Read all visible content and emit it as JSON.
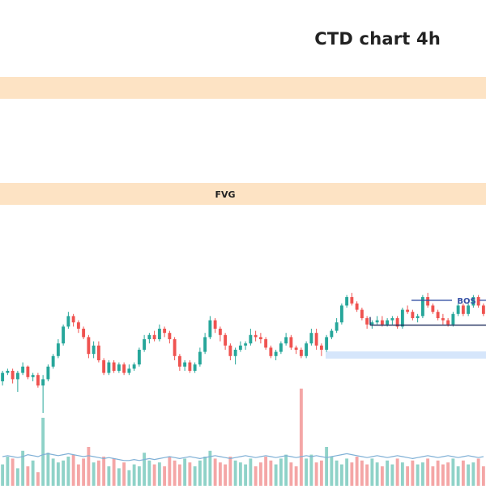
{
  "chart_data": {
    "type": "candlestick",
    "title": "CTD chart 4h",
    "timeframe": "4h",
    "colors": {
      "up": "#26a69a",
      "down": "#ef5350",
      "volume_up": "#8fd2c8",
      "volume_down": "#f4a6a6",
      "volume_ma": "#7fb0d6",
      "fvg_zone": "#fde3c4",
      "demand_zone": "#d6e6fb",
      "bos_line": "#3550a5",
      "text": "#222222"
    },
    "price_range": [
      0,
      100
    ],
    "annotations": {
      "fvg_label": "FVG",
      "bos_label": "BOS",
      "zone_upper": [
        87,
        83
      ],
      "zone_fvg": [
        62.5,
        58
      ],
      "bos_level": 55.8,
      "support_level": 41.7,
      "demand_zone": [
        29.2,
        25.8
      ]
    },
    "candles": [
      [
        15,
        20,
        13,
        19
      ],
      [
        19,
        21,
        18,
        20
      ],
      [
        20,
        21,
        14,
        16
      ],
      [
        16,
        20,
        10,
        19
      ],
      [
        19,
        24,
        18,
        22
      ],
      [
        22,
        22.5,
        16,
        17
      ],
      [
        17,
        19,
        15,
        18
      ],
      [
        18,
        19,
        12,
        13
      ],
      [
        13,
        18,
        0,
        16
      ],
      [
        16,
        23,
        15,
        22
      ],
      [
        22,
        28,
        21,
        27
      ],
      [
        27,
        35,
        26,
        33
      ],
      [
        33,
        42,
        32,
        41
      ],
      [
        41,
        48,
        40,
        46
      ],
      [
        46,
        47,
        41,
        43
      ],
      [
        43,
        44,
        38,
        40
      ],
      [
        40,
        41,
        35,
        36
      ],
      [
        36,
        37,
        26,
        28
      ],
      [
        28,
        34,
        26,
        32
      ],
      [
        32,
        34,
        24,
        25
      ],
      [
        25,
        26,
        18,
        19
      ],
      [
        19,
        25,
        18,
        24
      ],
      [
        24,
        25,
        19,
        20
      ],
      [
        20,
        24,
        19,
        23
      ],
      [
        23,
        24,
        18,
        19
      ],
      [
        19,
        23,
        18,
        21
      ],
      [
        21,
        24,
        20,
        23
      ],
      [
        23,
        31,
        22,
        30
      ],
      [
        30,
        37,
        29,
        35
      ],
      [
        35,
        38,
        33,
        37
      ],
      [
        37,
        39,
        34,
        35
      ],
      [
        35,
        42,
        34,
        40
      ],
      [
        40,
        41,
        36,
        38
      ],
      [
        38,
        39,
        33,
        35
      ],
      [
        35,
        36,
        25,
        27
      ],
      [
        27,
        28,
        20,
        22
      ],
      [
        22,
        25,
        20,
        24
      ],
      [
        24,
        25,
        19,
        20
      ],
      [
        20,
        24,
        19,
        23
      ],
      [
        23,
        31,
        22,
        29
      ],
      [
        29,
        38,
        28,
        36
      ],
      [
        36,
        46,
        35,
        44
      ],
      [
        44,
        45,
        38,
        40
      ],
      [
        40,
        41,
        34,
        37
      ],
      [
        37,
        38,
        30,
        32
      ],
      [
        32,
        33,
        25,
        27
      ],
      [
        27,
        31,
        23,
        30
      ],
      [
        30,
        34,
        29,
        32
      ],
      [
        32,
        34,
        30,
        33
      ],
      [
        33,
        40,
        32,
        37
      ],
      [
        37,
        39,
        34,
        36
      ],
      [
        36,
        38,
        33,
        35
      ],
      [
        35,
        36,
        30,
        31
      ],
      [
        31,
        32,
        26,
        27
      ],
      [
        27,
        30,
        25,
        29
      ],
      [
        29,
        34,
        28,
        33
      ],
      [
        33,
        38,
        32,
        36
      ],
      [
        36,
        37,
        30,
        31
      ],
      [
        31,
        32,
        28,
        30
      ],
      [
        30,
        31,
        26,
        27
      ],
      [
        27,
        34,
        26,
        33
      ],
      [
        33,
        40,
        32,
        38
      ],
      [
        38,
        40,
        30,
        32
      ],
      [
        32,
        33,
        27,
        30
      ],
      [
        30,
        37,
        29,
        36
      ],
      [
        36,
        40,
        35,
        39
      ],
      [
        39,
        45,
        38,
        43
      ],
      [
        43,
        52,
        42,
        51
      ],
      [
        51,
        56,
        50,
        55
      ],
      [
        55,
        57,
        51,
        52
      ],
      [
        52,
        53,
        48,
        49
      ],
      [
        49,
        50,
        44,
        45
      ],
      [
        45,
        46,
        40,
        42
      ],
      [
        42,
        44,
        40,
        43
      ],
      [
        43,
        46,
        42,
        44
      ],
      [
        44,
        46,
        41,
        42
      ],
      [
        42,
        45,
        41,
        44
      ],
      [
        44,
        46,
        42,
        45
      ],
      [
        45,
        46,
        40,
        41
      ],
      [
        41,
        50,
        40,
        49
      ],
      [
        49,
        51,
        47,
        48
      ],
      [
        48,
        49,
        44,
        45
      ],
      [
        45,
        47,
        43,
        46
      ],
      [
        46,
        56,
        45,
        55
      ],
      [
        55,
        57,
        50,
        51
      ],
      [
        51,
        52,
        47,
        48
      ],
      [
        48,
        49,
        44,
        45
      ],
      [
        45,
        47,
        42,
        44
      ],
      [
        44,
        45,
        41,
        42
      ],
      [
        42,
        48,
        41,
        47
      ],
      [
        47,
        52,
        46,
        51
      ],
      [
        51,
        52,
        46,
        47
      ],
      [
        47,
        52,
        46,
        51
      ],
      [
        51,
        56,
        50,
        55
      ],
      [
        55,
        56,
        50,
        51
      ],
      [
        51,
        52,
        46,
        47
      ]
    ],
    "volume_ma_percent": [
      30,
      31,
      30,
      29,
      30,
      32,
      31,
      30,
      32,
      33,
      32,
      31,
      32,
      33,
      32,
      31,
      30,
      31,
      30,
      29,
      28,
      29,
      28,
      27,
      26,
      26,
      27,
      26,
      27,
      28,
      27,
      28,
      29,
      30,
      29,
      28,
      29,
      30,
      29,
      28,
      29,
      30,
      31,
      30,
      29,
      28,
      29,
      30,
      31,
      30,
      29,
      30,
      31,
      30,
      29,
      30,
      31,
      30,
      29,
      30,
      31,
      30,
      31,
      30,
      29,
      30,
      31,
      32,
      33,
      32,
      31,
      30,
      29,
      30,
      31,
      30,
      29,
      30,
      31,
      30,
      29,
      28,
      29,
      30,
      31,
      30,
      29,
      30,
      31,
      30,
      29,
      30,
      31,
      30,
      29,
      30
    ],
    "volume_percent": [
      22,
      30,
      28,
      18,
      36,
      20,
      26,
      14,
      70,
      34,
      28,
      24,
      26,
      30,
      32,
      22,
      28,
      40,
      24,
      26,
      30,
      20,
      28,
      18,
      24,
      16,
      22,
      20,
      34,
      26,
      22,
      24,
      20,
      30,
      26,
      22,
      28,
      24,
      20,
      26,
      30,
      36,
      28,
      24,
      22,
      30,
      26,
      24,
      22,
      28,
      20,
      24,
      30,
      26,
      22,
      28,
      32,
      24,
      20,
      100,
      28,
      32,
      24,
      26,
      40,
      30,
      26,
      22,
      28,
      24,
      30,
      26,
      22,
      28,
      24,
      20,
      26,
      22,
      28,
      24,
      20,
      26,
      22,
      24,
      28,
      20,
      26,
      22,
      24,
      28,
      20,
      26,
      22,
      24,
      28,
      20
    ]
  }
}
